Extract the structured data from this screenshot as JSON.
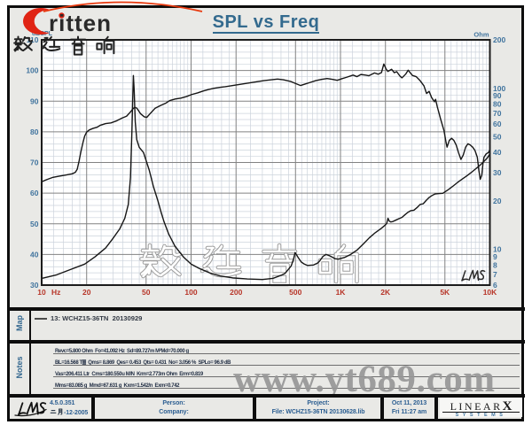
{
  "branding": {
    "logo_word": "ritten",
    "logo_cjk": "毅廷音响",
    "logo_accent_color": "#e02414"
  },
  "watermarks": {
    "center_cjk": "毅廷音响",
    "url_text": "www.yt689.com",
    "lms_script": "LMS"
  },
  "chart_data": {
    "type": "line",
    "title": "SPL vs Freq",
    "x_axis": {
      "unit": "Hz",
      "scale": "log",
      "min": 10,
      "max": 10000,
      "ticks": [
        {
          "f": 10,
          "label": "10"
        },
        {
          "f": 20,
          "label": "20"
        },
        {
          "f": 50,
          "label": "50"
        },
        {
          "f": 100,
          "label": "100"
        },
        {
          "f": 200,
          "label": "200"
        },
        {
          "f": 500,
          "label": "500"
        },
        {
          "f": 1000,
          "label": "1K"
        },
        {
          "f": 2000,
          "label": "2K"
        },
        {
          "f": 5000,
          "label": "5K"
        },
        {
          "f": 10000,
          "label": "10K"
        }
      ]
    },
    "y_left_axis": {
      "label": "dBSPL",
      "min": 30,
      "max": 110,
      "major_step": 10,
      "minor_step": 2,
      "ticks": [
        110,
        100,
        90,
        80,
        70,
        60,
        50,
        40,
        30
      ]
    },
    "y_right_axis": {
      "label": "Ohm",
      "scale": "log",
      "min": 6,
      "max": 200,
      "ticks": [
        200,
        100,
        90,
        80,
        70,
        60,
        50,
        40,
        30,
        20,
        10,
        9,
        8,
        7,
        6
      ]
    },
    "grid": {
      "shown": true,
      "minor_x_per_decade": [
        1.2,
        1.4,
        1.6,
        1.8,
        2,
        2.5,
        3,
        3.5,
        4,
        4.5,
        5,
        5.5,
        6,
        6.5,
        7,
        7.5,
        8,
        8.5,
        9,
        9.5
      ],
      "major_x": [
        1,
        2,
        5
      ]
    },
    "series": [
      {
        "name": "SPL (13: WCHZ15-36TN  20130929)",
        "axis": "left",
        "unit": "dBSPL",
        "color": "#161616",
        "points": [
          [
            10,
            63.7
          ],
          [
            10.8,
            64.4
          ],
          [
            11.8,
            65.1
          ],
          [
            13,
            65.5
          ],
          [
            14.5,
            65.9
          ],
          [
            16,
            66.3
          ],
          [
            16.8,
            66.8
          ],
          [
            17.3,
            67.8
          ],
          [
            17.8,
            70.5
          ],
          [
            18.3,
            73.5
          ],
          [
            18.9,
            76.5
          ],
          [
            19.4,
            78.6
          ],
          [
            20,
            79.9
          ],
          [
            20.8,
            80.6
          ],
          [
            22,
            81.1
          ],
          [
            23.5,
            81.5
          ],
          [
            24.6,
            82.1
          ],
          [
            26.8,
            82.7
          ],
          [
            29.1,
            82.9
          ],
          [
            31.8,
            83.6
          ],
          [
            34.6,
            84.5
          ],
          [
            37,
            85.1
          ],
          [
            39,
            86.3
          ],
          [
            41,
            87.6
          ],
          [
            42,
            88
          ],
          [
            43.4,
            87.7
          ],
          [
            45.9,
            85.9
          ],
          [
            48.6,
            84.9
          ],
          [
            50.5,
            84.7
          ],
          [
            52.9,
            85.8
          ],
          [
            57.5,
            87.7
          ],
          [
            62.5,
            88.6
          ],
          [
            68,
            89.4
          ],
          [
            72,
            90.2
          ],
          [
            78.3,
            90.7
          ],
          [
            85.5,
            91
          ],
          [
            93,
            91.5
          ],
          [
            101.5,
            92.2
          ],
          [
            110.5,
            92.7
          ],
          [
            120.3,
            93.3
          ],
          [
            131,
            93.8
          ],
          [
            142.5,
            94.2
          ],
          [
            155.2,
            94.5
          ],
          [
            169,
            94.7
          ],
          [
            190.5,
            95.1
          ],
          [
            214.5,
            95.5
          ],
          [
            241.7,
            95.9
          ],
          [
            272.3,
            96.3
          ],
          [
            306.8,
            96.7
          ],
          [
            345.6,
            97
          ],
          [
            378.8,
            97.2
          ],
          [
            414,
            97
          ],
          [
            466,
            96.4
          ],
          [
            510,
            95.6
          ],
          [
            541,
            95.1
          ],
          [
            573,
            95.5
          ],
          [
            626,
            96.1
          ],
          [
            683,
            96.7
          ],
          [
            745,
            97.1
          ],
          [
            814,
            97.4
          ],
          [
            888,
            97.1
          ],
          [
            950,
            96.8
          ],
          [
            1020,
            97.3
          ],
          [
            1100,
            97.8
          ],
          [
            1215,
            98.5
          ],
          [
            1290,
            98
          ],
          [
            1370,
            98.7
          ],
          [
            1470,
            98.5
          ],
          [
            1550,
            98.3
          ],
          [
            1690,
            99.2
          ],
          [
            1790,
            98.8
          ],
          [
            1880,
            99.3
          ],
          [
            1950,
            102.1
          ],
          [
            2020,
            100.5
          ],
          [
            2075,
            99.7
          ],
          [
            2200,
            100.4
          ],
          [
            2290,
            99.3
          ],
          [
            2380,
            99.6
          ],
          [
            2500,
            98.2
          ],
          [
            2580,
            97.6
          ],
          [
            2740,
            98.9
          ],
          [
            2840,
            100.1
          ],
          [
            3030,
            98.4
          ],
          [
            3210,
            98
          ],
          [
            3410,
            96.7
          ],
          [
            3620,
            95
          ],
          [
            3770,
            92.5
          ],
          [
            3920,
            93.2
          ],
          [
            4080,
            91.1
          ],
          [
            4260,
            89.8
          ],
          [
            4330,
            90.6
          ],
          [
            4440,
            88.3
          ],
          [
            4690,
            84
          ],
          [
            4930,
            80.4
          ],
          [
            5080,
            76.8
          ],
          [
            5170,
            75
          ],
          [
            5350,
            77.2
          ],
          [
            5540,
            77.9
          ],
          [
            5740,
            77.2
          ],
          [
            5950,
            75.7
          ],
          [
            6170,
            73.2
          ],
          [
            6400,
            71
          ],
          [
            6630,
            72.4
          ],
          [
            6880,
            75
          ],
          [
            7130,
            76.1
          ],
          [
            7390,
            75.7
          ],
          [
            7670,
            75
          ],
          [
            7950,
            73.9
          ],
          [
            8240,
            71.7
          ],
          [
            8440,
            67.4
          ],
          [
            8620,
            64.5
          ],
          [
            8830,
            65.9
          ],
          [
            8980,
            69.5
          ],
          [
            9130,
            71.7
          ],
          [
            9440,
            72.8
          ],
          [
            9760,
            73.2
          ],
          [
            10000,
            74.2
          ]
        ]
      },
      {
        "name": "Impedance (13: WCHZ15-36TN  20130929)",
        "axis": "right",
        "unit": "Ohm",
        "color": "#161616",
        "points": [
          [
            10,
            6.6
          ],
          [
            12.6,
            6.95
          ],
          [
            15.6,
            7.5
          ],
          [
            19.4,
            8.1
          ],
          [
            22.8,
            9
          ],
          [
            26.8,
            10.2
          ],
          [
            29.8,
            11.6
          ],
          [
            33.3,
            13.4
          ],
          [
            36,
            15.6
          ],
          [
            38,
            19
          ],
          [
            39.3,
            28
          ],
          [
            40.2,
            55
          ],
          [
            40.8,
            95
          ],
          [
            41.1,
            120
          ],
          [
            41.6,
            98
          ],
          [
            42.3,
            62
          ],
          [
            43.3,
            48
          ],
          [
            45,
            43
          ],
          [
            48,
            40
          ],
          [
            52.5,
            31
          ],
          [
            56,
            24.5
          ],
          [
            60,
            20
          ],
          [
            63,
            17
          ],
          [
            66,
            14.8
          ],
          [
            70.7,
            12.5
          ],
          [
            77.9,
            10.5
          ],
          [
            88.6,
            9
          ],
          [
            100,
            8.1
          ],
          [
            114,
            7.6
          ],
          [
            133,
            7.15
          ],
          [
            156,
            6.85
          ],
          [
            190,
            6.65
          ],
          [
            238,
            6.55
          ],
          [
            300,
            6.5
          ],
          [
            352,
            6.6
          ],
          [
            400,
            6.9
          ],
          [
            426,
            7.1
          ],
          [
            468,
            7.9
          ],
          [
            485,
            8.7
          ],
          [
            497,
            9.56
          ],
          [
            510,
            9.2
          ],
          [
            521,
            8.9
          ],
          [
            546,
            8.35
          ],
          [
            573,
            8.1
          ],
          [
            600,
            7.95
          ],
          [
            660,
            8
          ],
          [
            700,
            8.2
          ],
          [
            728,
            8.5
          ],
          [
            764,
            9.05
          ],
          [
            800,
            9.3
          ],
          [
            840,
            9.15
          ],
          [
            880,
            8.95
          ],
          [
            922,
            8.75
          ],
          [
            967,
            8.7
          ],
          [
            1063,
            8.9
          ],
          [
            1170,
            9.3
          ],
          [
            1290,
            9.9
          ],
          [
            1420,
            10.8
          ],
          [
            1560,
            11.8
          ],
          [
            1710,
            12.7
          ],
          [
            1875,
            13.5
          ],
          [
            2000,
            14.2
          ],
          [
            2040,
            14.5
          ],
          [
            2080,
            15.6
          ],
          [
            2120,
            15
          ],
          [
            2170,
            14.8
          ],
          [
            2244,
            14.9
          ],
          [
            2350,
            15.2
          ],
          [
            2460,
            15.5
          ],
          [
            2580,
            15.8
          ],
          [
            2700,
            16.4
          ],
          [
            2830,
            17
          ],
          [
            2960,
            17.4
          ],
          [
            3100,
            17.5
          ],
          [
            3260,
            18.2
          ],
          [
            3410,
            19
          ],
          [
            3580,
            19.2
          ],
          [
            3740,
            20.1
          ],
          [
            3920,
            21
          ],
          [
            4100,
            21.6
          ],
          [
            4300,
            22.1
          ],
          [
            4500,
            22.2
          ],
          [
            4840,
            22.3
          ],
          [
            5270,
            23.5
          ],
          [
            5600,
            24.5
          ],
          [
            6100,
            26.1
          ],
          [
            6600,
            27.5
          ],
          [
            7000,
            28.6
          ],
          [
            7500,
            30
          ],
          [
            8060,
            31.7
          ],
          [
            8680,
            33.6
          ],
          [
            9130,
            35.2
          ],
          [
            9600,
            36.9
          ],
          [
            10000,
            39.2
          ]
        ]
      }
    ]
  },
  "map_section": {
    "label": "Map",
    "legend": "13: WCHZ15-36TN  20130929"
  },
  "notes_section": {
    "label": "Notes",
    "lines": [
      "Revc=5.800 Ohm  Fo=41.092 Hz  Sd=89.727m M²Md=70.000 g",
      "BL=16.568 T▓  Qms= 8.869  Qes= 0.453  Qts= 0.431  No= 3.056 %  SPLo= 96.9 dB",
      "Vas=206.411 Ltr  Cms=180.550u M/N  Krm=2.773m Ohm  Erm=0.819",
      "Mms=83.085 g  Mmd=67.631 g  Kxm=1.542/n  Exm=0.742"
    ]
  },
  "footer": {
    "lms_logo": "LMS",
    "version": "4.5.0.351",
    "date_cjk": "二月",
    "date_rest": "-12-2005",
    "person_label": "Person:",
    "company_label": "Company:",
    "project_label": "Project:",
    "file_text": "File: WCHZ15-36TN  20130628.lib",
    "date": "Oct 11, 2013",
    "time": "Fri 11:27 am",
    "brand_top": "LINEAR",
    "brand_x": "X",
    "brand_bottom": "SYSTEMS"
  },
  "colors": {
    "panel_bg": "#e9e9e6",
    "plot_bg": "#ffffff",
    "grid_minor": "#ccd3dc",
    "grid_major": "#828282",
    "frame": "#1c1c1c",
    "label_blue": "#41749e",
    "label_red": "#b73528",
    "title_blue": "#336a8e",
    "curve": "#161616",
    "watermark_grey": "#a8a8a8"
  }
}
